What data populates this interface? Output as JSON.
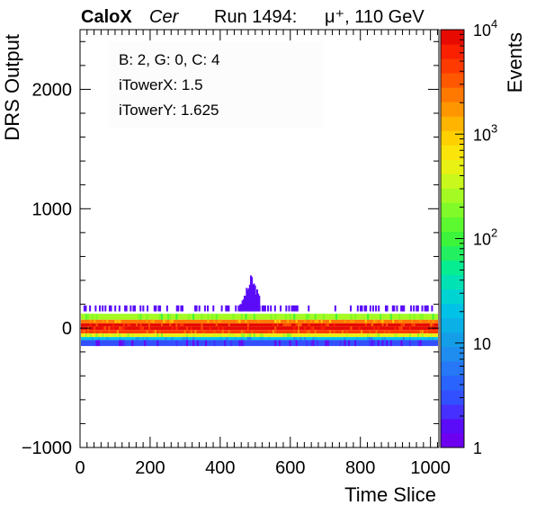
{
  "header": {
    "brand": "CaloX",
    "channel": "Cer",
    "run": "Run 1494:",
    "particle": "μ⁺, 110 GeV"
  },
  "info_box": {
    "line1": "B: 2, G: 0, C: 4",
    "line2": "iTowerX: 1.5",
    "line3": "iTowerY: 1.625"
  },
  "chart_data": {
    "type": "heatmap",
    "title": "",
    "xlabel": "Time Slice",
    "ylabel": "DRS Output",
    "zlabel": "Events",
    "xlim": [
      0,
      1024
    ],
    "ylim": [
      -1000,
      2500
    ],
    "zlim": [
      1,
      10000
    ],
    "z_scale": "log",
    "x_ticks": [
      "0",
      "200",
      "400",
      "600",
      "800",
      "1000"
    ],
    "y_ticks": [
      "−1000",
      "0",
      "1000",
      "2000"
    ],
    "z_ticks": [
      {
        "value": 1,
        "label": "1"
      },
      {
        "value": 10,
        "label": "10"
      },
      {
        "value": 100,
        "label": "10",
        "exp": "2"
      },
      {
        "value": 1000,
        "label": "10",
        "exp": "3"
      },
      {
        "value": 10000,
        "label": "10",
        "exp": "4"
      }
    ],
    "palette": [
      "#6e00f0",
      "#5a0cf8",
      "#4630ff",
      "#3250ff",
      "#2a64ff",
      "#2678f6",
      "#1f8cf0",
      "#149ee8",
      "#0ab0e6",
      "#00c2e6",
      "#00d4d2",
      "#00e2b4",
      "#06ec90",
      "#22f060",
      "#3cf43a",
      "#5cf830",
      "#80fa28",
      "#a4fa22",
      "#c8f81c",
      "#e8f014",
      "#fae40a",
      "#ffd000",
      "#ffb400",
      "#ff9600",
      "#ff7800",
      "#ff5800",
      "#ff3a00",
      "#fa2000",
      "#e60a00"
    ],
    "bands": [
      {
        "y_min": 140,
        "y_max": 190,
        "events": 1.5,
        "sparse": true
      },
      {
        "y_min": 70,
        "y_max": 120,
        "events": 300
      },
      {
        "y_min": 40,
        "y_max": 70,
        "events": 2500
      },
      {
        "y_min": 15,
        "y_max": 40,
        "events": 8000
      },
      {
        "y_min": -15,
        "y_max": 15,
        "events": 10000
      },
      {
        "y_min": -45,
        "y_max": -15,
        "events": 5000
      },
      {
        "y_min": -75,
        "y_max": -45,
        "events": 500
      },
      {
        "y_min": -100,
        "y_max": -75,
        "events": 20
      },
      {
        "y_min": -150,
        "y_max": -100,
        "events": 3
      }
    ],
    "pulse": {
      "x_start": 455,
      "x_end": 510,
      "y_max": 470,
      "events": 1.5
    },
    "grid": false,
    "legend": "none"
  }
}
